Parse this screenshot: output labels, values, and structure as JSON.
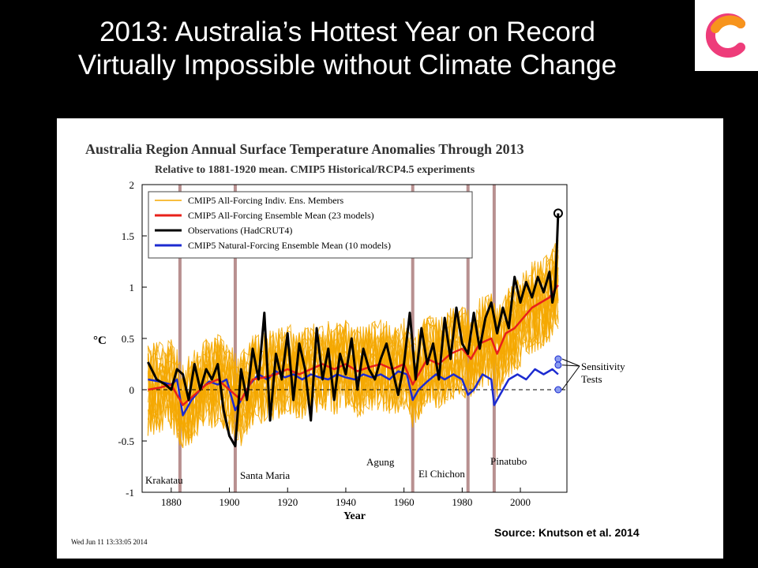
{
  "slide": {
    "title_line1": "2013: Australia’s Hottest Year on Record",
    "title_line2": "Virtually Impossible without Climate Change",
    "logo_icon": "c-logo-icon",
    "source": "Source: Knutson et al. 2014"
  },
  "chart_data": {
    "type": "line",
    "title": "Australia Region Annual Surface Temperature Anomalies Through 2013",
    "subtitle": "Relative to 1881-1920 mean.  CMIP5 Historical/RCP4.5 experiments",
    "xlabel": "Year",
    "ylabel": "°C",
    "xlim": [
      1870,
      2016
    ],
    "ylim": [
      -1,
      2
    ],
    "xticks": [
      1880,
      1900,
      1920,
      1940,
      1960,
      1980,
      2000
    ],
    "yticks": [
      -1,
      -0.5,
      0,
      0.5,
      1,
      1.5,
      2
    ],
    "ytick_labels": [
      "-1",
      "-0.5",
      "0",
      "0.5",
      "1",
      "1.5",
      "2"
    ],
    "grid": false,
    "legend_position": "top-left",
    "timestamp": "Wed Jun 11 13:33:05 2014",
    "legend": [
      "CMIP5 All-Forcing Indiv. Ens. Members",
      "CMIP5 All-Forcing Ensemble Mean (23 models)",
      "Observations (HadCRUT4)",
      "CMIP5 Natural-Forcing Ensemble Mean (10 models)"
    ],
    "colors": {
      "members": "#f5a800",
      "allmean": "#e8201a",
      "obs": "#000000",
      "natural": "#1c2bd0",
      "volcano": "#b89090"
    },
    "volcanoes": [
      {
        "name": "Krakatau",
        "year": 1883
      },
      {
        "name": "Santa Maria",
        "year": 1902
      },
      {
        "name": "Agung",
        "year": 1963
      },
      {
        "name": "El Chichon",
        "year": 1982
      },
      {
        "name": "Pinatubo",
        "year": 1991
      }
    ],
    "sensitivity_label": [
      "Sensitivity",
      "Tests"
    ],
    "sensitivity_points": [
      {
        "year": 2013,
        "value": 0.3
      },
      {
        "year": 2013,
        "value": 0.24
      },
      {
        "year": 2013,
        "value": 0.0
      }
    ],
    "observation_2013_marker": {
      "year": 2013,
      "value": 1.72
    },
    "series": [
      {
        "name": "Observations (HadCRUT4)",
        "key": "obs",
        "x": [
          1872,
          1875,
          1878,
          1880,
          1882,
          1884,
          1886,
          1888,
          1890,
          1892,
          1894,
          1896,
          1898,
          1900,
          1902,
          1904,
          1906,
          1908,
          1910,
          1912,
          1914,
          1916,
          1918,
          1920,
          1922,
          1924,
          1926,
          1928,
          1930,
          1932,
          1934,
          1936,
          1938,
          1940,
          1942,
          1944,
          1946,
          1948,
          1950,
          1952,
          1954,
          1956,
          1958,
          1960,
          1962,
          1964,
          1966,
          1968,
          1970,
          1972,
          1974,
          1976,
          1978,
          1980,
          1982,
          1984,
          1986,
          1988,
          1990,
          1992,
          1994,
          1996,
          1998,
          2000,
          2002,
          2004,
          2006,
          2008,
          2010,
          2011,
          2012,
          2013
        ],
        "values": [
          0.27,
          0.1,
          0.05,
          0.0,
          0.2,
          0.15,
          -0.1,
          0.25,
          0.0,
          0.2,
          0.1,
          0.25,
          -0.2,
          -0.45,
          -0.55,
          0.2,
          -0.1,
          0.4,
          0.1,
          0.75,
          -0.3,
          0.35,
          0.1,
          0.55,
          -0.1,
          0.45,
          0.2,
          -0.3,
          0.6,
          0.1,
          0.4,
          -0.1,
          0.35,
          0.15,
          0.5,
          0.0,
          0.4,
          0.2,
          0.1,
          0.3,
          0.45,
          0.2,
          -0.05,
          0.25,
          0.75,
          0.1,
          0.6,
          0.25,
          0.45,
          0.1,
          0.7,
          0.3,
          0.8,
          0.45,
          0.35,
          0.75,
          0.4,
          0.7,
          0.85,
          0.55,
          0.8,
          0.6,
          1.1,
          0.85,
          1.05,
          0.9,
          1.1,
          0.95,
          1.15,
          0.85,
          1.0,
          1.72
        ]
      },
      {
        "name": "CMIP5 All-Forcing Ensemble Mean (23 models)",
        "key": "allmean",
        "x": [
          1872,
          1876,
          1880,
          1884,
          1888,
          1892,
          1896,
          1900,
          1904,
          1908,
          1912,
          1916,
          1920,
          1924,
          1928,
          1932,
          1936,
          1940,
          1944,
          1948,
          1952,
          1956,
          1960,
          1963,
          1965,
          1968,
          1972,
          1976,
          1980,
          1983,
          1986,
          1990,
          1992,
          1995,
          1998,
          2001,
          2004,
          2007,
          2010,
          2013
        ],
        "values": [
          0.0,
          0.02,
          0.05,
          -0.15,
          -0.05,
          0.05,
          0.1,
          0.0,
          -0.1,
          0.1,
          0.12,
          0.15,
          0.2,
          0.15,
          0.2,
          0.25,
          0.2,
          0.25,
          0.18,
          0.22,
          0.25,
          0.2,
          0.25,
          0.05,
          0.15,
          0.3,
          0.25,
          0.35,
          0.4,
          0.3,
          0.45,
          0.5,
          0.35,
          0.55,
          0.6,
          0.7,
          0.8,
          0.85,
          0.9,
          1.02
        ]
      },
      {
        "name": "CMIP5 Natural-Forcing Ensemble Mean (10 models)",
        "key": "natural",
        "x": [
          1872,
          1876,
          1880,
          1882,
          1884,
          1887,
          1890,
          1893,
          1896,
          1899,
          1902,
          1904,
          1907,
          1910,
          1913,
          1916,
          1919,
          1922,
          1925,
          1928,
          1931,
          1934,
          1937,
          1940,
          1943,
          1946,
          1949,
          1952,
          1955,
          1958,
          1961,
          1963,
          1965,
          1968,
          1971,
          1974,
          1977,
          1980,
          1982,
          1984,
          1987,
          1990,
          1991,
          1993,
          1996,
          1999,
          2002,
          2005,
          2008,
          2011,
          2013
        ],
        "values": [
          0.1,
          0.08,
          0.05,
          0.1,
          -0.25,
          -0.1,
          0.0,
          0.08,
          0.05,
          0.1,
          -0.2,
          -0.1,
          0.05,
          0.15,
          0.1,
          0.18,
          0.12,
          0.15,
          0.1,
          0.15,
          0.12,
          0.1,
          0.15,
          0.12,
          0.1,
          0.15,
          0.12,
          0.15,
          0.1,
          0.18,
          0.15,
          -0.1,
          0.0,
          0.08,
          0.15,
          0.1,
          0.15,
          0.1,
          -0.05,
          0.0,
          0.15,
          0.1,
          -0.15,
          -0.05,
          0.1,
          0.15,
          0.1,
          0.2,
          0.15,
          0.2,
          0.15
        ]
      }
    ]
  }
}
